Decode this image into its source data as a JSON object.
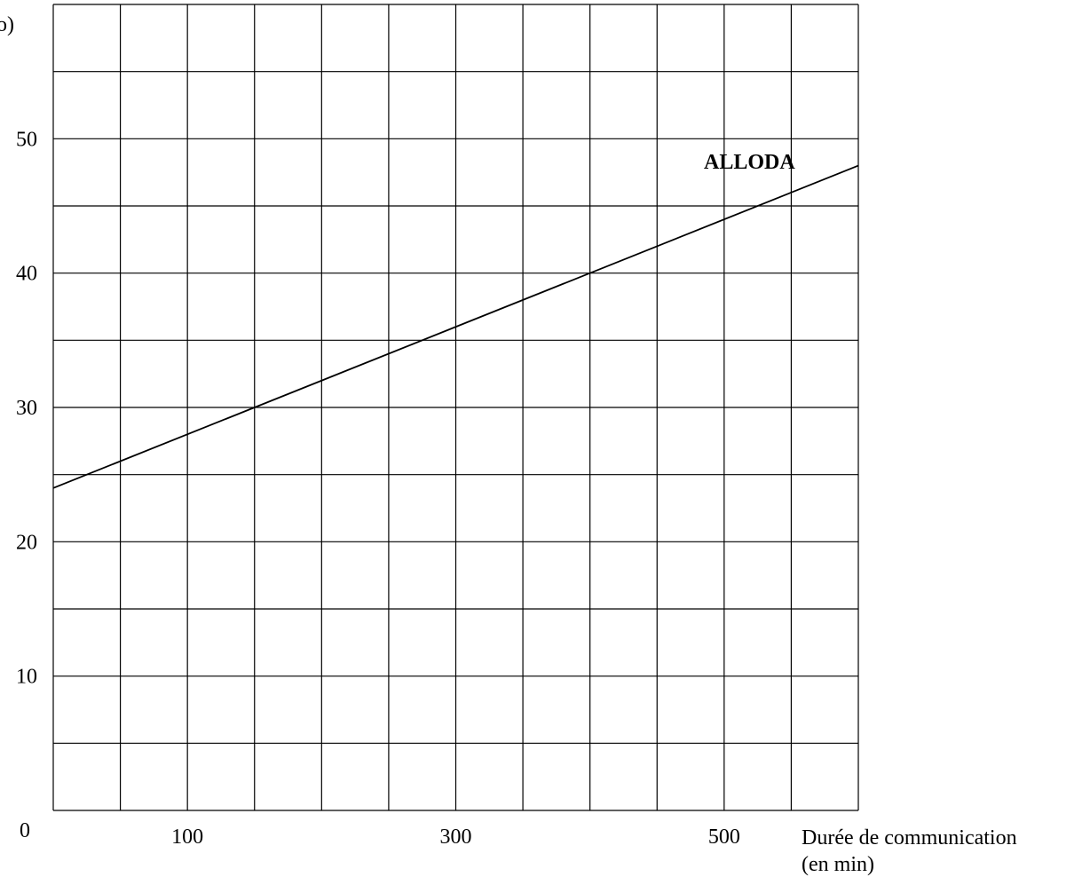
{
  "chart_data": {
    "type": "line",
    "title": "",
    "ylabel_visible_fragment": "o)",
    "xlabel_line1": "Durée de communication",
    "xlabel_line2": "(en min)",
    "origin_label": "0",
    "x_tick_labels": [
      "100",
      "300",
      "500"
    ],
    "x_tick_values": [
      100,
      300,
      500
    ],
    "y_tick_labels": [
      "10",
      "20",
      "30",
      "40",
      "50"
    ],
    "y_tick_values": [
      10,
      20,
      30,
      40,
      50
    ],
    "xlim": [
      0,
      600
    ],
    "ylim": [
      0,
      60
    ],
    "grid": true,
    "grid_x_step": 50,
    "grid_y_step": 5,
    "series": [
      {
        "name": "ALLODA",
        "x": [
          0,
          600
        ],
        "y": [
          24,
          48
        ]
      }
    ],
    "colors": {
      "line": "#000000",
      "grid": "#000000",
      "background": "#ffffff"
    }
  }
}
